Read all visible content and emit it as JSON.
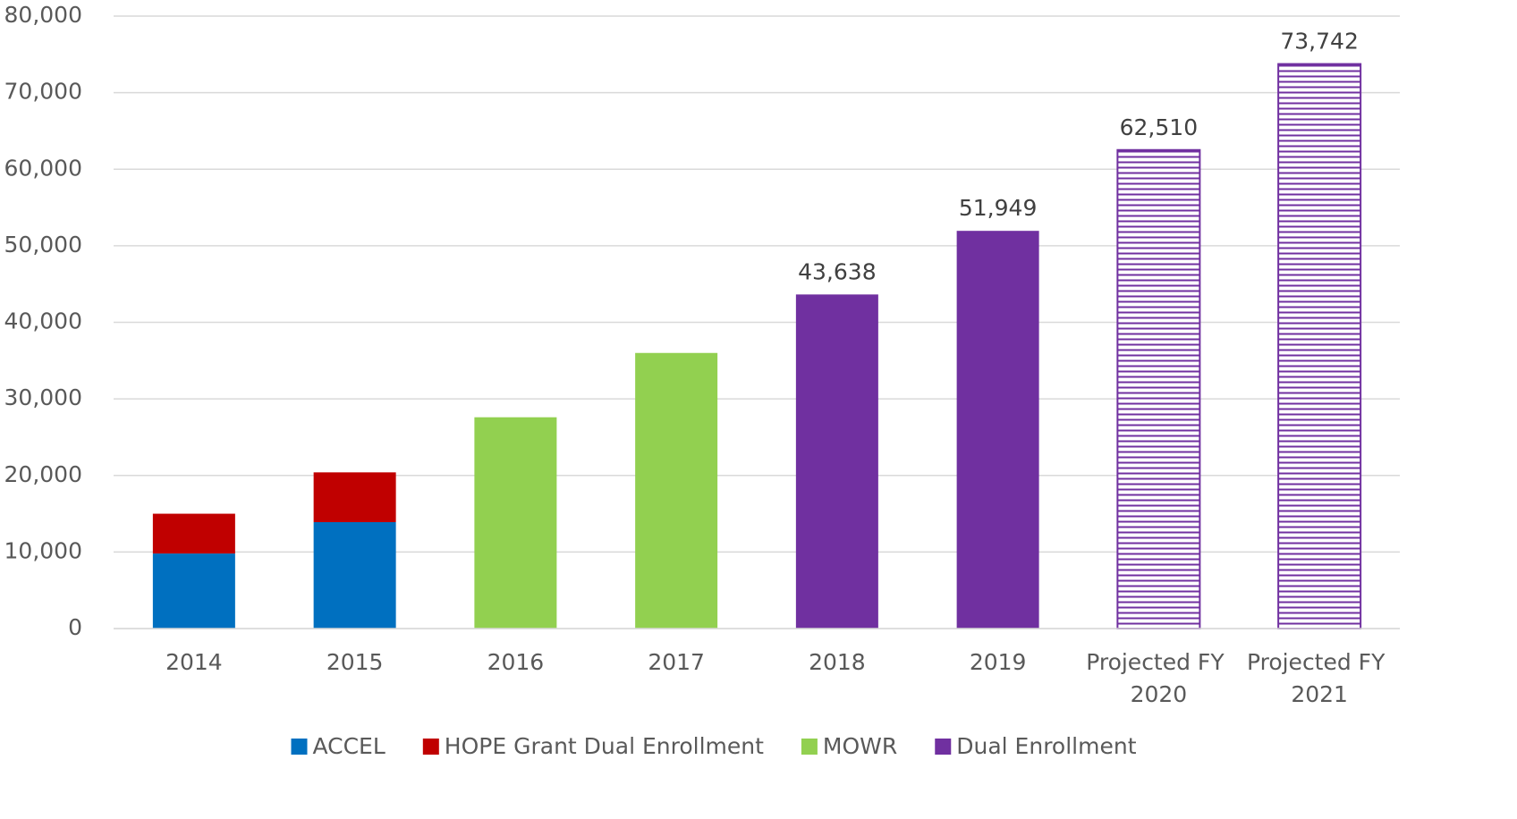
{
  "chart_data": {
    "type": "bar",
    "stacked": true,
    "categories": [
      "2014",
      "2015",
      "2016",
      "2017",
      "2018",
      "2019",
      "Projected FY 2020",
      "Projected FY 2021"
    ],
    "series": [
      {
        "name": "ACCEL",
        "color": "#0070c0",
        "values": [
          9800,
          13900,
          null,
          null,
          null,
          null,
          null,
          null
        ]
      },
      {
        "name": "HOPE Grant Dual Enrollment",
        "color": "#c00000",
        "values": [
          5200,
          6500,
          null,
          null,
          null,
          null,
          null,
          null
        ]
      },
      {
        "name": "MOWR",
        "color": "#92d050",
        "values": [
          null,
          null,
          27600,
          36000,
          null,
          null,
          null,
          null
        ]
      },
      {
        "name": "Dual Enrollment",
        "color": "#7030a0",
        "values": [
          null,
          null,
          null,
          null,
          43638,
          51949,
          62510,
          73742
        ],
        "value_labels": [
          null,
          null,
          null,
          null,
          "43,638",
          "51,949",
          "62,510",
          "73,742"
        ],
        "hatched": [
          false,
          false,
          false,
          false,
          false,
          false,
          true,
          true
        ]
      }
    ],
    "ylim": [
      0,
      80000
    ],
    "yticks": [
      0,
      {
        "value": 10000,
        "label": "10,000"
      },
      {
        "value": 20000,
        "label": "20,000"
      },
      {
        "value": 30000,
        "label": "30,000"
      },
      {
        "value": 40000,
        "label": "40,000"
      },
      {
        "value": 50000,
        "label": "50,000"
      },
      {
        "value": 60000,
        "label": "60,000"
      },
      {
        "value": 70000,
        "label": "70,000"
      },
      {
        "value": 80000,
        "label": "80,000"
      }
    ],
    "grid": true,
    "legend": "bottom"
  }
}
